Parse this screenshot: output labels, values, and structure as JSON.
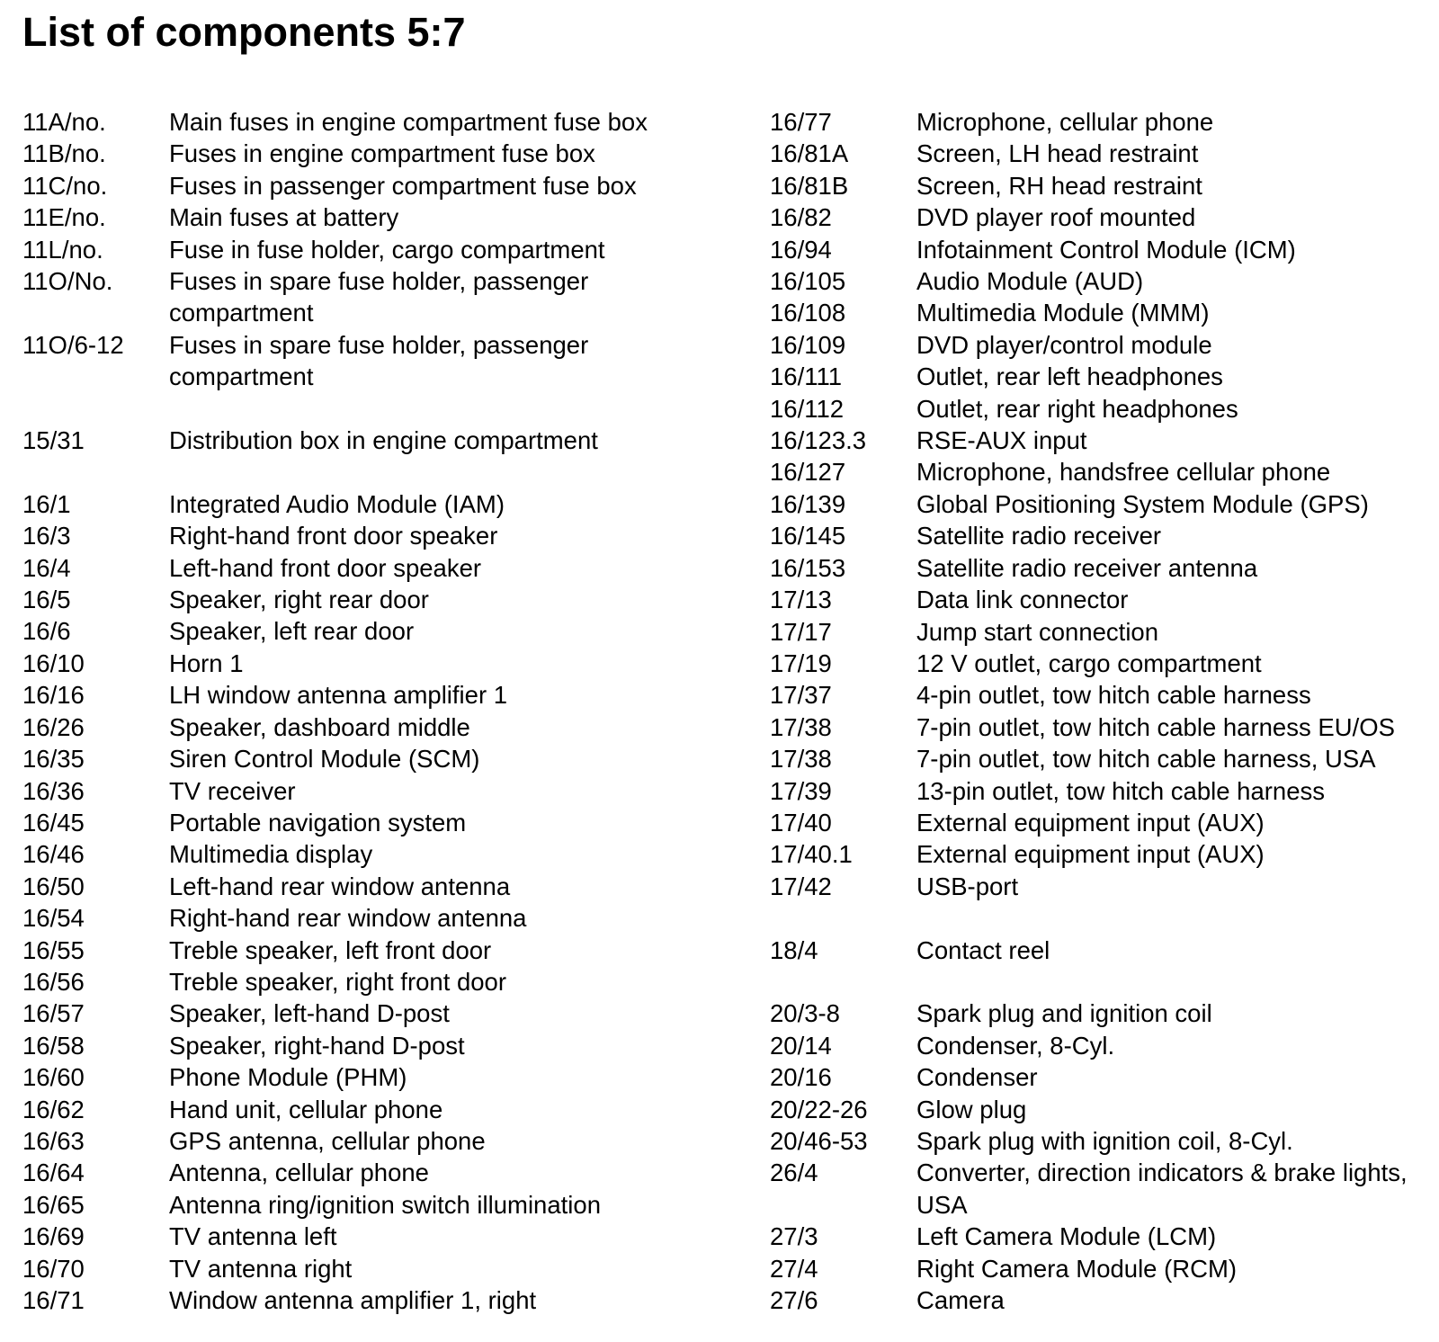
{
  "title": "List of components 5:7",
  "left_column": [
    {
      "code": "11A/no.",
      "desc": "Main fuses in engine compartment fuse box"
    },
    {
      "code": "11B/no.",
      "desc": "Fuses in engine compartment fuse box"
    },
    {
      "code": "11C/no.",
      "desc": "Fuses in passenger compartment fuse box"
    },
    {
      "code": "11E/no.",
      "desc": "Main fuses at battery"
    },
    {
      "code": "11L/no.",
      "desc": "Fuse in fuse holder, cargo compartment"
    },
    {
      "code": "11O/No.",
      "desc": "Fuses in spare fuse holder, passenger\ncompartment"
    },
    {
      "code": "11O/6-12",
      "desc": "Fuses in spare fuse holder, passenger\ncompartment"
    },
    {
      "gap": true
    },
    {
      "code": "15/31",
      "desc": "Distribution box in engine compartment"
    },
    {
      "gap": true
    },
    {
      "code": "16/1",
      "desc": "Integrated Audio Module (IAM)"
    },
    {
      "code": "16/3",
      "desc": "Right-hand front door speaker"
    },
    {
      "code": "16/4",
      "desc": "Left-hand front door speaker"
    },
    {
      "code": "16/5",
      "desc": "Speaker, right rear door"
    },
    {
      "code": "16/6",
      "desc": "Speaker, left rear door"
    },
    {
      "code": "16/10",
      "desc": "Horn 1"
    },
    {
      "code": "16/16",
      "desc": "LH window antenna amplifier 1"
    },
    {
      "code": "16/26",
      "desc": "Speaker, dashboard middle"
    },
    {
      "code": "16/35",
      "desc": "Siren Control Module (SCM)"
    },
    {
      "code": "16/36",
      "desc": "TV receiver"
    },
    {
      "code": "16/45",
      "desc": "Portable navigation system"
    },
    {
      "code": "16/46",
      "desc": "Multimedia display"
    },
    {
      "code": "16/50",
      "desc": "Left-hand rear window antenna"
    },
    {
      "code": "16/54",
      "desc": "Right-hand rear window antenna"
    },
    {
      "code": "16/55",
      "desc": "Treble speaker, left front door"
    },
    {
      "code": "16/56",
      "desc": "Treble speaker, right front door"
    },
    {
      "code": "16/57",
      "desc": "Speaker, left-hand D-post"
    },
    {
      "code": "16/58",
      "desc": "Speaker, right-hand D-post"
    },
    {
      "code": "16/60",
      "desc": "Phone Module (PHM)"
    },
    {
      "code": "16/62",
      "desc": "Hand unit, cellular phone"
    },
    {
      "code": "16/63",
      "desc": "GPS antenna, cellular phone"
    },
    {
      "code": "16/64",
      "desc": "Antenna, cellular phone"
    },
    {
      "code": "16/65",
      "desc": "Antenna ring/ignition switch illumination"
    },
    {
      "code": "16/69",
      "desc": "TV antenna left"
    },
    {
      "code": "16/70",
      "desc": "TV antenna right"
    },
    {
      "code": "16/71",
      "desc": "Window antenna amplifier 1, right"
    }
  ],
  "right_column": [
    {
      "code": "16/77",
      "desc": "Microphone, cellular phone"
    },
    {
      "code": "16/81A",
      "desc": "Screen, LH head restraint"
    },
    {
      "code": "16/81B",
      "desc": "Screen, RH head restraint"
    },
    {
      "code": "16/82",
      "desc": "DVD player roof mounted"
    },
    {
      "code": "16/94",
      "desc": "Infotainment Control Module (ICM)"
    },
    {
      "code": "16/105",
      "desc": "Audio Module (AUD)"
    },
    {
      "code": "16/108",
      "desc": "Multimedia Module (MMM)"
    },
    {
      "code": "16/109",
      "desc": "DVD player/control module"
    },
    {
      "code": "16/111",
      "desc": "Outlet, rear left headphones"
    },
    {
      "code": "16/112",
      "desc": "Outlet, rear right headphones"
    },
    {
      "code": "16/123.3",
      "desc": "RSE-AUX input"
    },
    {
      "code": "16/127",
      "desc": "Microphone, handsfree cellular phone"
    },
    {
      "code": "16/139",
      "desc": "Global Positioning System Module (GPS)"
    },
    {
      "code": "16/145",
      "desc": "Satellite radio receiver"
    },
    {
      "code": "16/153",
      "desc": "Satellite radio receiver antenna"
    },
    {
      "code": "17/13",
      "desc": "Data link connector"
    },
    {
      "code": "17/17",
      "desc": "Jump start connection"
    },
    {
      "code": "17/19",
      "desc": "12 V outlet, cargo compartment"
    },
    {
      "code": "17/37",
      "desc": "4-pin outlet, tow hitch cable harness"
    },
    {
      "code": "17/38",
      "desc": "7-pin outlet, tow hitch cable harness EU/OS"
    },
    {
      "code": "17/38",
      "desc": "7-pin outlet, tow hitch cable harness, USA"
    },
    {
      "code": "17/39",
      "desc": "13-pin outlet, tow hitch cable harness"
    },
    {
      "code": "17/40",
      "desc": "External equipment input (AUX)"
    },
    {
      "code": "17/40.1",
      "desc": "External equipment input (AUX)"
    },
    {
      "code": "17/42",
      "desc": "USB-port"
    },
    {
      "gap": true
    },
    {
      "code": "18/4",
      "desc": "Contact reel"
    },
    {
      "gap": true
    },
    {
      "code": "20/3-8",
      "desc": "Spark plug and ignition coil"
    },
    {
      "code": "20/14",
      "desc": "Condenser, 8-Cyl."
    },
    {
      "code": "20/16",
      "desc": "Condenser"
    },
    {
      "code": "20/22-26",
      "desc": "Glow plug"
    },
    {
      "code": "20/46-53",
      "desc": "Spark plug with ignition coil, 8-Cyl."
    },
    {
      "code": "26/4",
      "desc": "Converter, direction indicators & brake lights,\nUSA"
    },
    {
      "code": "27/3",
      "desc": "Left Camera Module (LCM)"
    },
    {
      "code": "27/4",
      "desc": "Right Camera Module (RCM)"
    },
    {
      "code": "27/6",
      "desc": "Camera"
    }
  ]
}
